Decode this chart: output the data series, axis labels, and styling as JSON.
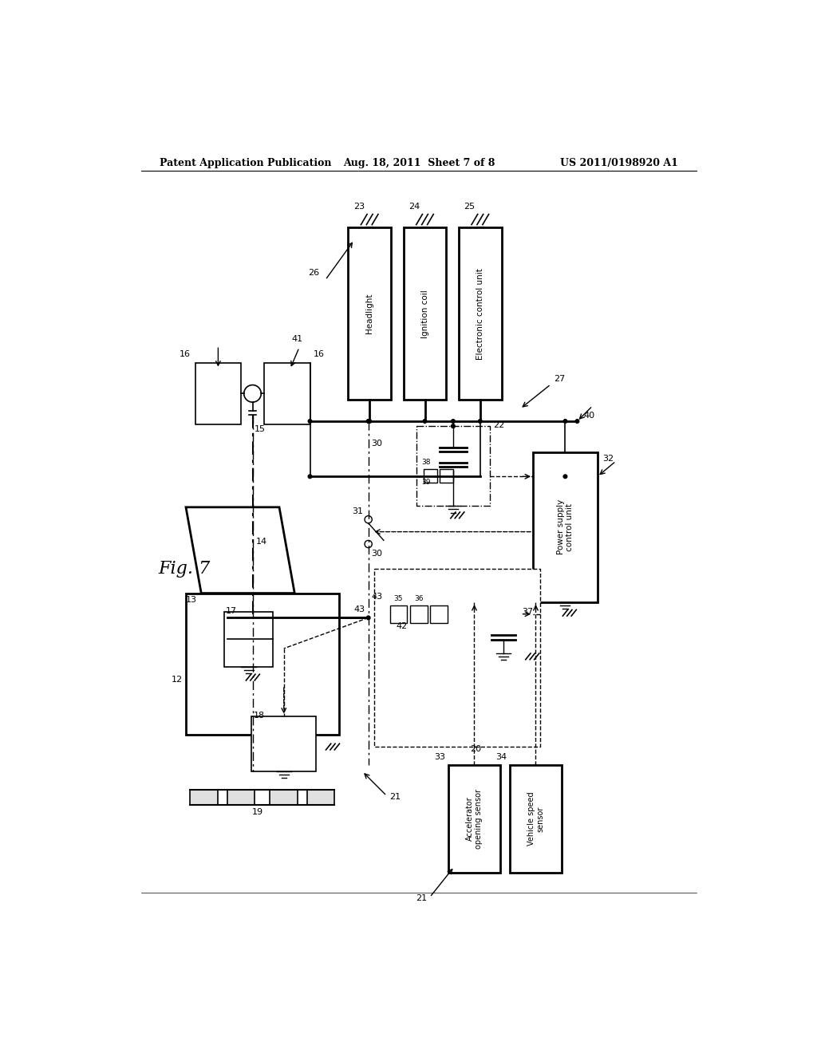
{
  "bg_color": "#ffffff",
  "title_left": "Patent Application Publication",
  "title_center": "Aug. 18, 2011  Sheet 7 of 8",
  "title_right": "US 2011/0198920 A1",
  "fig_label": "Fig. 7",
  "lw": 1.2,
  "lw_thick": 2.0,
  "fs_num": 8,
  "fs_header": 9,
  "fs_label": 7.5,
  "fs_fig": 14
}
